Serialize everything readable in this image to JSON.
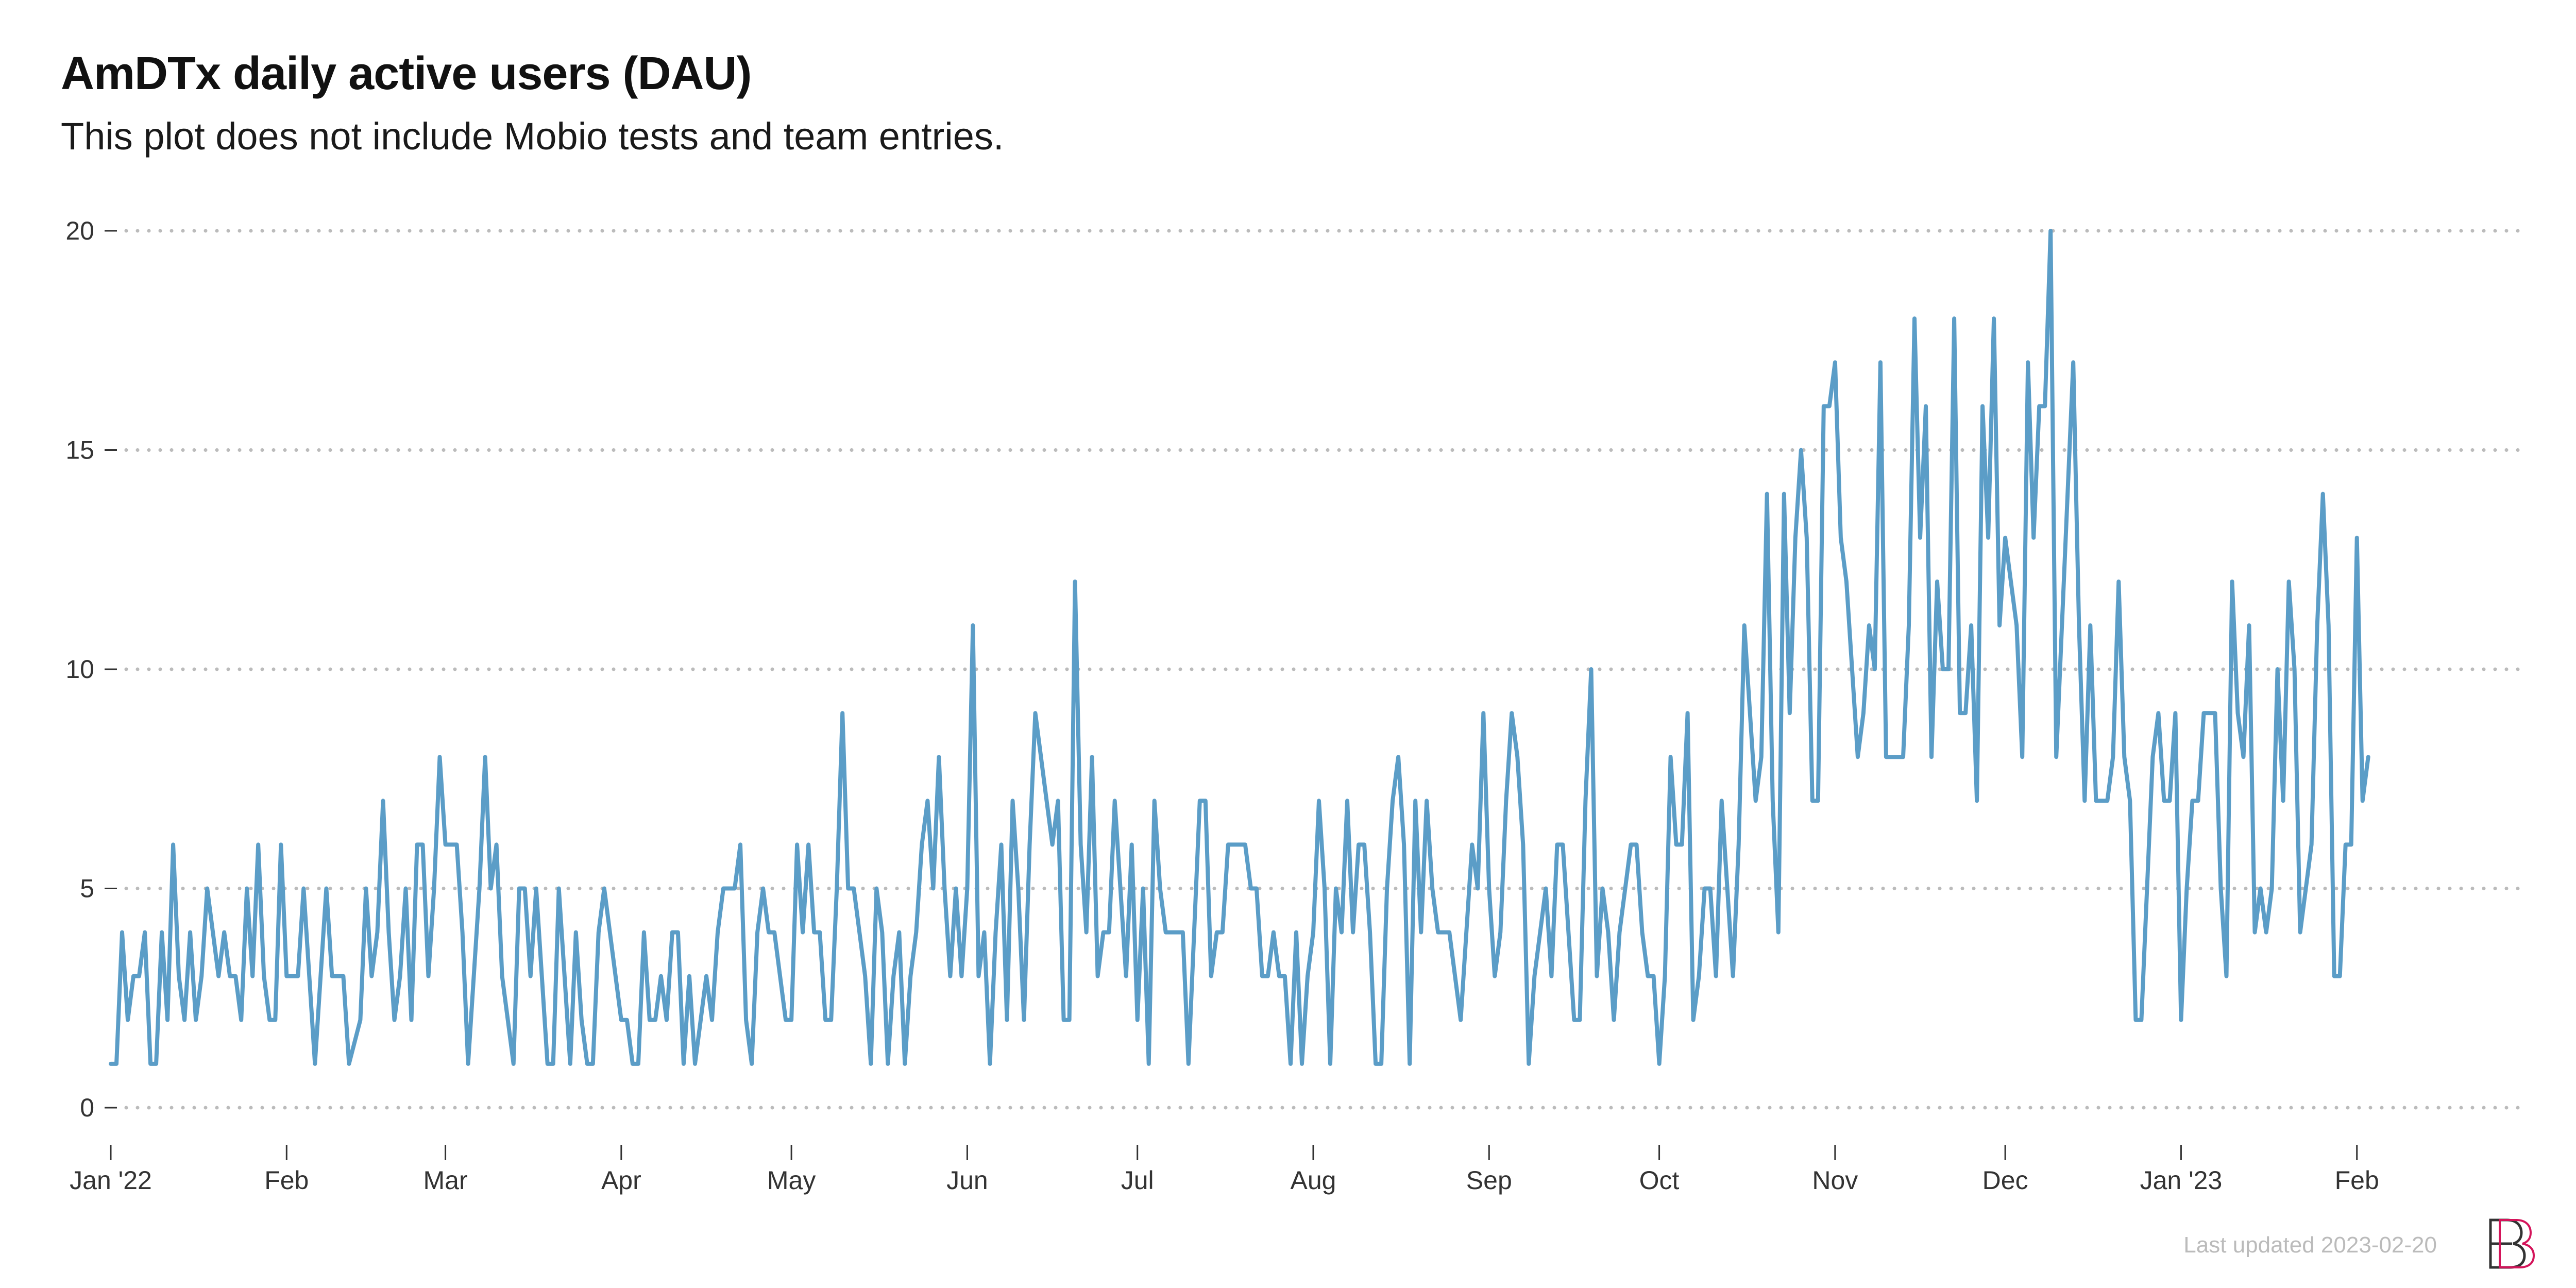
{
  "title": "AmDTx daily active users (DAU)",
  "subtitle": "This plot does not include Mobio tests and team entries.",
  "footer": "Last updated 2023-02-20",
  "colors": {
    "line": "#5b9dc7",
    "grid": "#bbbbbb",
    "text": "#333333",
    "logo_primary": "#333333",
    "logo_accent": "#d4145a"
  },
  "logo_icon": "bb-monogram-logo",
  "chart_data": {
    "type": "line",
    "title": "AmDTx daily active users (DAU)",
    "subtitle": "This plot does not include Mobio tests and team entries.",
    "xlabel": "",
    "ylabel": "",
    "x_start": "2022-01-01",
    "x_end": "2023-02-03",
    "xlim": [
      "2022-01-01",
      "2023-03-03"
    ],
    "ylim": [
      0,
      20
    ],
    "y_ticks": [
      0,
      5,
      10,
      15,
      20
    ],
    "x_ticks": [
      {
        "date": "2022-01-01",
        "label": "Jan '22"
      },
      {
        "date": "2022-02-01",
        "label": "Feb"
      },
      {
        "date": "2022-03-01",
        "label": "Mar"
      },
      {
        "date": "2022-04-01",
        "label": "Apr"
      },
      {
        "date": "2022-05-01",
        "label": "May"
      },
      {
        "date": "2022-06-01",
        "label": "Jun"
      },
      {
        "date": "2022-07-01",
        "label": "Jul"
      },
      {
        "date": "2022-08-01",
        "label": "Aug"
      },
      {
        "date": "2022-09-01",
        "label": "Sep"
      },
      {
        "date": "2022-10-01",
        "label": "Oct"
      },
      {
        "date": "2022-11-01",
        "label": "Nov"
      },
      {
        "date": "2022-12-01",
        "label": "Dec"
      },
      {
        "date": "2023-01-01",
        "label": "Jan '23"
      },
      {
        "date": "2023-02-01",
        "label": "Feb"
      }
    ],
    "grid": "horizontal dotted",
    "legend": "none",
    "series": [
      {
        "values": [
          1,
          1,
          4,
          2,
          3,
          3,
          4,
          1,
          1,
          4,
          2,
          6,
          3,
          2,
          4,
          2,
          3,
          5,
          4,
          3,
          4,
          3,
          3,
          2,
          5,
          3,
          6,
          3,
          2,
          2,
          6,
          3,
          3,
          3,
          5,
          3,
          1,
          3,
          5,
          3,
          3,
          3,
          1,
          1.5,
          2,
          5,
          3,
          4,
          7,
          4,
          2,
          3,
          5,
          2,
          6,
          6,
          3,
          5,
          8,
          6,
          6,
          6,
          4,
          1,
          3,
          5,
          8,
          5,
          6,
          3,
          2,
          1,
          5,
          5,
          3,
          5,
          3,
          1,
          1,
          5,
          3,
          1,
          4,
          2,
          1,
          1,
          4,
          5,
          4,
          3,
          2,
          2,
          1,
          1,
          4,
          2,
          2,
          3,
          2,
          4,
          4,
          1,
          3,
          1,
          2,
          3,
          2,
          4,
          5,
          5,
          5,
          6,
          2,
          1,
          4,
          5,
          4,
          4,
          3,
          2,
          2,
          6,
          4,
          6,
          4,
          4,
          2,
          2,
          5,
          9,
          5,
          5,
          4,
          3,
          1,
          5,
          4,
          1,
          3,
          4,
          1,
          3,
          4,
          6,
          7,
          5,
          8,
          5,
          3,
          5,
          3,
          5,
          11,
          3,
          4,
          1,
          4,
          6,
          2,
          7,
          5,
          2,
          6,
          9,
          8,
          7,
          6,
          7,
          2,
          2,
          12,
          6,
          4,
          8,
          3,
          4,
          4,
          7,
          5,
          3,
          6,
          2,
          5,
          1,
          7,
          5,
          4,
          4,
          4,
          4,
          1,
          4,
          7,
          7,
          3,
          4,
          4,
          6,
          6,
          6,
          6,
          5,
          5,
          3,
          3,
          4,
          3,
          3,
          1,
          4,
          1,
          3,
          4,
          7,
          5,
          1,
          5,
          4,
          7,
          4,
          6,
          6,
          4,
          1,
          1,
          5,
          7,
          8,
          6,
          1,
          7,
          4,
          7,
          5,
          4,
          4,
          4,
          3,
          2,
          4,
          6,
          5,
          9,
          5,
          3,
          4,
          7,
          9,
          8,
          6,
          1,
          3,
          4,
          5,
          3,
          6,
          6,
          4,
          2,
          2,
          7,
          10,
          3,
          5,
          4,
          2,
          4,
          5,
          6,
          6,
          4,
          3,
          3,
          1,
          3,
          8,
          6,
          6,
          9,
          2,
          3,
          5,
          5,
          3,
          7,
          5,
          3,
          6,
          11,
          9,
          7,
          8,
          14,
          7,
          4,
          14,
          9,
          13,
          15,
          13,
          7,
          7,
          16,
          16,
          17,
          13,
          12,
          10,
          8,
          9,
          11,
          10,
          17,
          8,
          8,
          8,
          8,
          11,
          18,
          13,
          16,
          8,
          12,
          10,
          10,
          18,
          9,
          9,
          11,
          7,
          16,
          13,
          18,
          11,
          13,
          12,
          11,
          8,
          17,
          13,
          16,
          16,
          20,
          8,
          11,
          14,
          17,
          11,
          7,
          11,
          7,
          7,
          7,
          8,
          12,
          8,
          7,
          2,
          2,
          5,
          8,
          9,
          7,
          7,
          9,
          2,
          5,
          7,
          7,
          9,
          9,
          9,
          5,
          3,
          12,
          9,
          8,
          11,
          4,
          5,
          4,
          5,
          10,
          7,
          12,
          10,
          4,
          5,
          6,
          11,
          14,
          11,
          3,
          3,
          6,
          6,
          13,
          7,
          8
        ]
      }
    ]
  }
}
